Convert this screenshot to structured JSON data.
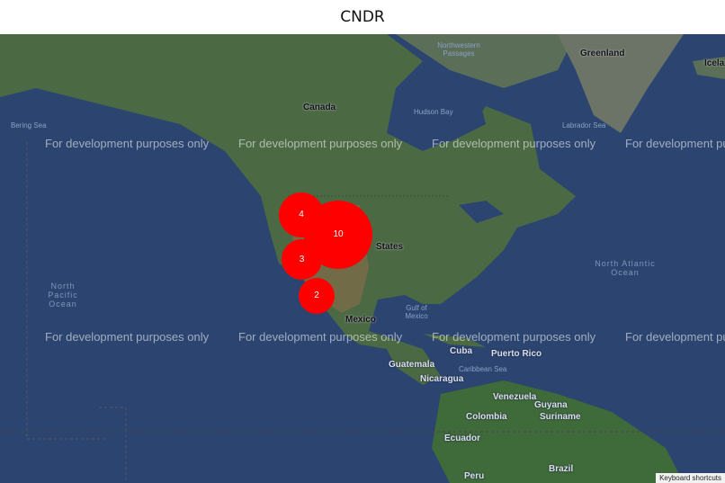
{
  "header": {
    "title": "CNDR"
  },
  "map": {
    "labels": {
      "greenland": "Greenland",
      "iceland": "Icela",
      "canada": "Canada",
      "hudson_bay": "Hudson Bay",
      "labrador_sea": "Labrador Sea",
      "nw_passages": "Northwestern Passages",
      "bering_sea": "Bering Sea",
      "north_atlantic": "North Atlantic Ocean",
      "north_pacific": "North Pacific Ocean",
      "united_states": "States",
      "mexico": "Mexico",
      "gulf_of_mexico": "Gulf of Mexico",
      "cuba": "Cuba",
      "puerto_rico": "Puerto Rico",
      "guatemala": "Guatemala",
      "nicaragua": "Nicaragua",
      "caribbean_sea": "Caribbean Sea",
      "venezuela": "Venezuela",
      "guyana": "Guyana",
      "suriname": "Suriname",
      "colombia": "Colombia",
      "ecuador": "Ecuador",
      "peru": "Peru",
      "brazil": "Brazil"
    },
    "watermark": "For development purposes only",
    "keyboard_shortcuts": "Keyboard shortcuts",
    "clusters": [
      {
        "count": "10"
      },
      {
        "count": "4"
      },
      {
        "count": "3"
      },
      {
        "count": "2"
      }
    ],
    "colors": {
      "cluster": "#ff0000",
      "ocean": "#2c4570",
      "land": "#4b6a44"
    }
  }
}
